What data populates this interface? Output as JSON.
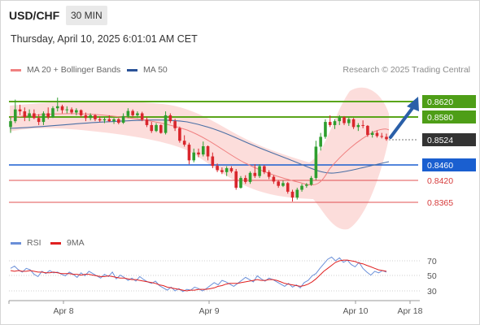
{
  "header": {
    "symbol": "USD/CHF",
    "timeframe": "30 MIN",
    "datetime": "Thursday, April 10, 2025 6:01:01 AM CET"
  },
  "legend": {
    "ma20_label": "MA 20 + Bollinger Bands",
    "ma50_label": "MA 50",
    "rsi_label": "RSI",
    "rsi_ma_label": "9MA",
    "copyright": "Research © 2025 Trading Central"
  },
  "colors": {
    "up": "#2e9e2e",
    "down": "#d9262c",
    "ma20": "#f08080",
    "bands": "#fbd7d5",
    "ma50": "#4a6fa5",
    "resistance": "#5aa51a",
    "pivot": "#1a5fd0",
    "support": "#e05050",
    "price_box": "#333333",
    "arrow": "#2a5fa8",
    "rsi": "#6a8fd8",
    "rsi_ma": "#e02020"
  },
  "levels": [
    {
      "value": "0.8620",
      "kind": "resistance"
    },
    {
      "value": "0.8580",
      "kind": "resistance"
    },
    {
      "value": "0.8524",
      "kind": "current"
    },
    {
      "value": "0.8460",
      "kind": "pivot"
    },
    {
      "value": "0.8420",
      "kind": "support"
    },
    {
      "value": "0.8365",
      "kind": "support"
    }
  ],
  "xaxis": {
    "labels": [
      "Apr 8",
      "Apr 9",
      "Apr 10",
      "Apr 18"
    ]
  },
  "rsi_axis": {
    "labels": [
      "70",
      "50",
      "30"
    ]
  },
  "chart_data": [
    {
      "type": "candlestick",
      "title": "USD/CHF 30 MIN",
      "y_scale": [
        [
          "0.8620",
          125
        ],
        [
          "0.8365",
          248
        ]
      ],
      "ylim": [
        0.832,
        0.8665
      ],
      "ohlc": [
        [
          0.8555,
          0.858,
          0.854,
          0.857
        ],
        [
          0.857,
          0.8625,
          0.8565,
          0.86
        ],
        [
          0.86,
          0.8612,
          0.8585,
          0.8595
        ],
        [
          0.8595,
          0.8605,
          0.857,
          0.858
        ],
        [
          0.858,
          0.86,
          0.857,
          0.859
        ],
        [
          0.859,
          0.86,
          0.8575,
          0.8578
        ],
        [
          0.8578,
          0.8588,
          0.856,
          0.8568
        ],
        [
          0.8568,
          0.8595,
          0.856,
          0.859
        ],
        [
          0.859,
          0.8605,
          0.8575,
          0.858
        ],
        [
          0.858,
          0.8608,
          0.8578,
          0.8603
        ],
        [
          0.8603,
          0.863,
          0.8595,
          0.8608
        ],
        [
          0.8608,
          0.8612,
          0.859,
          0.8598
        ],
        [
          0.8598,
          0.8608,
          0.859,
          0.86
        ],
        [
          0.86,
          0.8605,
          0.8588,
          0.8592
        ],
        [
          0.8592,
          0.8603,
          0.8585,
          0.8598
        ],
        [
          0.8598,
          0.86,
          0.858,
          0.8585
        ],
        [
          0.8585,
          0.8592,
          0.857,
          0.8578
        ],
        [
          0.8578,
          0.859,
          0.8572,
          0.8585
        ],
        [
          0.8585,
          0.8588,
          0.857,
          0.8575
        ],
        [
          0.8575,
          0.8582,
          0.8568,
          0.8572
        ],
        [
          0.8572,
          0.858,
          0.8565,
          0.8575
        ],
        [
          0.8575,
          0.8585,
          0.8568,
          0.857
        ],
        [
          0.857,
          0.8578,
          0.8563,
          0.8575
        ],
        [
          0.8575,
          0.8578,
          0.8562,
          0.8566
        ],
        [
          0.8566,
          0.859,
          0.8563,
          0.8583
        ],
        [
          0.8583,
          0.8603,
          0.8578,
          0.8596
        ],
        [
          0.8596,
          0.86,
          0.858,
          0.8585
        ],
        [
          0.8585,
          0.8595,
          0.8578,
          0.859
        ],
        [
          0.859,
          0.8594,
          0.857,
          0.8574
        ],
        [
          0.8574,
          0.858,
          0.8555,
          0.856
        ],
        [
          0.856,
          0.8568,
          0.854,
          0.8545
        ],
        [
          0.8545,
          0.8565,
          0.8542,
          0.856
        ],
        [
          0.856,
          0.8562,
          0.8538,
          0.854
        ],
        [
          0.854,
          0.8595,
          0.8536,
          0.8585
        ],
        [
          0.8585,
          0.859,
          0.8565,
          0.857
        ],
        [
          0.857,
          0.8576,
          0.8545,
          0.8552
        ],
        [
          0.8552,
          0.8556,
          0.8515,
          0.852
        ],
        [
          0.852,
          0.8534,
          0.8505,
          0.851
        ],
        [
          0.851,
          0.8515,
          0.846,
          0.847
        ],
        [
          0.847,
          0.85,
          0.8465,
          0.849
        ],
        [
          0.849,
          0.85,
          0.8478,
          0.8485
        ],
        [
          0.8485,
          0.8518,
          0.848,
          0.8506
        ],
        [
          0.8506,
          0.8508,
          0.847,
          0.848
        ],
        [
          0.848,
          0.849,
          0.845,
          0.8456
        ],
        [
          0.8456,
          0.8462,
          0.844,
          0.8445
        ],
        [
          0.8445,
          0.8452,
          0.8435,
          0.844
        ],
        [
          0.844,
          0.8455,
          0.843,
          0.845
        ],
        [
          0.845,
          0.8455,
          0.8438,
          0.8442
        ],
        [
          0.8442,
          0.8448,
          0.8395,
          0.84
        ],
        [
          0.84,
          0.843,
          0.8398,
          0.8425
        ],
        [
          0.8425,
          0.8432,
          0.841,
          0.8415
        ],
        [
          0.8415,
          0.8442,
          0.841,
          0.8438
        ],
        [
          0.8438,
          0.846,
          0.8425,
          0.843
        ],
        [
          0.843,
          0.846,
          0.8425,
          0.8455
        ],
        [
          0.8455,
          0.8458,
          0.8435,
          0.844
        ],
        [
          0.844,
          0.8445,
          0.8422,
          0.8428
        ],
        [
          0.8428,
          0.8432,
          0.841,
          0.8416
        ],
        [
          0.8416,
          0.842,
          0.84,
          0.8405
        ],
        [
          0.8405,
          0.8418,
          0.8402,
          0.8412
        ],
        [
          0.8412,
          0.8415,
          0.8385,
          0.839
        ],
        [
          0.839,
          0.8395,
          0.8365,
          0.8375
        ],
        [
          0.8375,
          0.84,
          0.837,
          0.8395
        ],
        [
          0.8395,
          0.841,
          0.839,
          0.8405
        ],
        [
          0.8405,
          0.8412,
          0.84,
          0.8408
        ],
        [
          0.8408,
          0.843,
          0.8405,
          0.8425
        ],
        [
          0.8425,
          0.852,
          0.842,
          0.8505
        ],
        [
          0.8505,
          0.854,
          0.8495,
          0.853
        ],
        [
          0.853,
          0.8575,
          0.8525,
          0.8568
        ],
        [
          0.8568,
          0.8585,
          0.8555,
          0.856
        ],
        [
          0.856,
          0.8575,
          0.855,
          0.857
        ],
        [
          0.857,
          0.8585,
          0.856,
          0.858
        ],
        [
          0.858,
          0.8583,
          0.856,
          0.8565
        ],
        [
          0.8565,
          0.858,
          0.8558,
          0.8575
        ],
        [
          0.8575,
          0.8578,
          0.855,
          0.8555
        ],
        [
          0.8555,
          0.8565,
          0.8545,
          0.856
        ],
        [
          0.856,
          0.8572,
          0.8552,
          0.8558
        ],
        [
          0.8558,
          0.856,
          0.853,
          0.8535
        ],
        [
          0.8535,
          0.8545,
          0.8528,
          0.854
        ],
        [
          0.854,
          0.8546,
          0.8528,
          0.8532
        ],
        [
          0.8532,
          0.854,
          0.8526,
          0.853
        ],
        [
          0.853,
          0.8538,
          0.852,
          0.8524
        ]
      ]
    },
    {
      "type": "line",
      "title": "RSI",
      "y_scale": [
        [
          "70",
          321
        ],
        [
          "30",
          358
        ]
      ],
      "ylim": [
        20,
        80
      ],
      "series": [
        {
          "name": "RSI",
          "values": [
            60,
            63,
            58,
            55,
            60,
            58,
            52,
            49,
            56,
            53,
            57,
            54,
            55,
            52,
            50,
            55,
            52,
            48,
            54,
            50,
            56,
            53,
            50,
            47,
            52,
            49,
            55,
            46,
            51,
            48,
            44,
            47,
            43,
            49,
            45,
            42,
            40,
            43,
            37,
            34,
            31,
            35,
            30,
            33,
            29,
            32,
            31,
            35,
            33,
            30,
            33,
            37,
            41,
            38,
            44,
            42,
            39,
            36,
            40,
            44,
            48,
            45,
            42,
            50,
            46,
            43,
            47,
            45,
            42,
            39,
            36,
            40,
            35,
            38,
            34,
            41,
            44,
            50,
            53,
            60,
            66,
            72,
            75,
            70,
            74,
            68,
            71,
            65,
            62,
            68,
            60,
            55,
            51,
            56,
            54,
            57,
            55
          ]
        },
        {
          "name": "9MA",
          "values": [
            57,
            56,
            57,
            56,
            56,
            57,
            56,
            55,
            55,
            54,
            54,
            55,
            54,
            53,
            53,
            53,
            52,
            52,
            51,
            52,
            52,
            51,
            50,
            49,
            49,
            50,
            49,
            48,
            47,
            47,
            46,
            45,
            45,
            44,
            43,
            42,
            41,
            40,
            38,
            37,
            35,
            34,
            33,
            32,
            31,
            30,
            31,
            31,
            32,
            32,
            32,
            33,
            34,
            36,
            37,
            39,
            40,
            40,
            40,
            41,
            42,
            43,
            44,
            45,
            44,
            44,
            45,
            45,
            44,
            42,
            40,
            39,
            38,
            37,
            36,
            37,
            39,
            42,
            46,
            51,
            56,
            60,
            64,
            68,
            70,
            71,
            71,
            70,
            69,
            67,
            66,
            64,
            62,
            60,
            58,
            57,
            56
          ]
        }
      ]
    }
  ]
}
